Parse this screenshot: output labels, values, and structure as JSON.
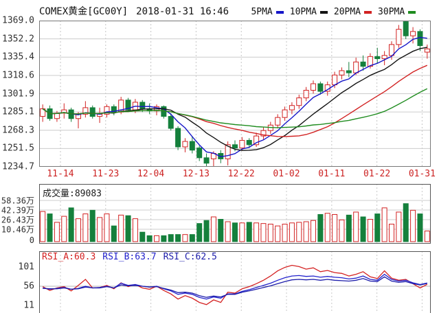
{
  "header": {
    "title": "COMEX黄金[GC00Y]",
    "datetime": "2018-01-31 16:46",
    "legend": [
      {
        "label": "5PMA",
        "color": "#1616c8"
      },
      {
        "label": "10PMA",
        "color": "#141414"
      },
      {
        "label": "20PMA",
        "color": "#d22222"
      },
      {
        "label": "30PMA",
        "color": "#1f8c1f"
      }
    ]
  },
  "chart_data": [
    {
      "type": "candlestick",
      "title": "COMEX黄金[GC00Y]",
      "ylim": [
        1234.7,
        1369.0
      ],
      "y_ticks": [
        "1369.0",
        "1352.2",
        "1335.4",
        "1318.6",
        "1301.9",
        "1285.1",
        "1268.3",
        "1251.5",
        "1234.7"
      ],
      "x_ticks": [
        "11-14",
        "11-23",
        "12-04",
        "12-13",
        "12-22",
        "01-02",
        "01-11",
        "01-22",
        "01-31"
      ],
      "x_tick_color": "#cc2222",
      "up_color": "#d22222",
      "down_color": "#15803c",
      "grid": true,
      "candles_ohlc": [
        [
          1281,
          1292,
          1276,
          1288
        ],
        [
          1288,
          1291,
          1277,
          1279
        ],
        [
          1279,
          1286,
          1276,
          1284
        ],
        [
          1284,
          1293,
          1279,
          1287
        ],
        [
          1287,
          1289,
          1276,
          1279
        ],
        [
          1279,
          1285,
          1270,
          1283
        ],
        [
          1283,
          1295,
          1280,
          1289
        ],
        [
          1289,
          1291,
          1279,
          1281
        ],
        [
          1281,
          1289,
          1275,
          1283
        ],
        [
          1283,
          1292,
          1280,
          1290
        ],
        [
          1290,
          1292,
          1282,
          1285
        ],
        [
          1285,
          1299,
          1283,
          1296
        ],
        [
          1296,
          1298,
          1285,
          1287
        ],
        [
          1287,
          1297,
          1284,
          1294
        ],
        [
          1294,
          1296,
          1285,
          1288
        ],
        [
          1288,
          1293,
          1283,
          1286
        ],
        [
          1286,
          1292,
          1282,
          1290
        ],
        [
          1290,
          1291,
          1279,
          1281
        ],
        [
          1281,
          1284,
          1268,
          1270
        ],
        [
          1270,
          1272,
          1250,
          1253
        ],
        [
          1253,
          1261,
          1248,
          1258
        ],
        [
          1258,
          1263,
          1247,
          1250
        ],
        [
          1252,
          1254,
          1240,
          1243
        ],
        [
          1243,
          1247,
          1235,
          1238
        ],
        [
          1242,
          1249,
          1234,
          1247
        ],
        [
          1247,
          1250,
          1238,
          1242
        ],
        [
          1242,
          1258,
          1236,
          1255
        ],
        [
          1255,
          1259,
          1249,
          1252
        ],
        [
          1252,
          1262,
          1250,
          1259
        ],
        [
          1259,
          1261,
          1252,
          1255
        ],
        [
          1255,
          1266,
          1253,
          1263
        ],
        [
          1263,
          1271,
          1260,
          1268
        ],
        [
          1268,
          1276,
          1265,
          1273
        ],
        [
          1273,
          1283,
          1270,
          1280
        ],
        [
          1280,
          1290,
          1277,
          1287
        ],
        [
          1287,
          1294,
          1283,
          1291
        ],
        [
          1291,
          1301,
          1288,
          1298
        ],
        [
          1298,
          1308,
          1295,
          1305
        ],
        [
          1305,
          1314,
          1302,
          1311
        ],
        [
          1311,
          1313,
          1301,
          1304
        ],
        [
          1304,
          1313,
          1300,
          1310
        ],
        [
          1310,
          1322,
          1307,
          1319
        ],
        [
          1319,
          1326,
          1315,
          1323
        ],
        [
          1323,
          1331,
          1317,
          1321
        ],
        [
          1321,
          1335,
          1319,
          1331
        ],
        [
          1331,
          1337,
          1323,
          1327
        ],
        [
          1327,
          1339,
          1325,
          1336
        ],
        [
          1336,
          1344,
          1330,
          1334
        ],
        [
          1334,
          1341,
          1328,
          1337
        ],
        [
          1337,
          1350,
          1333,
          1347
        ],
        [
          1347,
          1365,
          1344,
          1361
        ],
        [
          1368,
          1370,
          1352,
          1355
        ],
        [
          1355,
          1363,
          1348,
          1359
        ],
        [
          1359,
          1361,
          1341,
          1346
        ],
        [
          1340,
          1347,
          1334,
          1343
        ]
      ],
      "ma": [
        {
          "name": "5PMA",
          "period": 5,
          "color": "#1616c8"
        },
        {
          "name": "10PMA",
          "period": 10,
          "color": "#141414"
        },
        {
          "name": "20PMA",
          "period": 20,
          "color": "#d22222"
        },
        {
          "name": "30PMA",
          "period": 30,
          "color": "#1f8c1f"
        }
      ]
    },
    {
      "type": "bar",
      "title": "成交量",
      "value": "89083",
      "unit": "万",
      "y_ticks": [
        "58.36万",
        "42.39万",
        "26.43万",
        "10.46万",
        "0"
      ],
      "values": [
        40,
        36,
        22,
        32,
        46,
        28,
        36,
        42,
        30,
        36,
        16,
        34,
        33,
        28,
        8,
        5,
        5,
        5,
        6,
        6,
        6,
        6,
        20,
        25,
        31,
        27,
        23,
        21,
        21,
        22,
        21,
        20,
        19,
        16,
        19,
        21,
        22,
        23,
        25,
        35,
        37,
        35,
        26,
        34,
        39,
        31,
        27,
        36,
        46,
        19,
        39,
        53,
        42,
        36,
        9
      ]
    },
    {
      "type": "line",
      "title": "RSI",
      "y_ticks": [
        "101",
        "56",
        "11"
      ],
      "series": [
        {
          "name": "RSI_A",
          "value": "60.3",
          "color": "#d42222",
          "points": [
            55,
            46,
            52,
            55,
            45,
            58,
            72,
            52,
            53,
            58,
            50,
            64,
            55,
            60,
            52,
            49,
            56,
            46,
            38,
            26,
            34,
            28,
            18,
            13,
            24,
            18,
            42,
            40,
            50,
            55,
            62,
            70,
            80,
            92,
            100,
            105,
            102,
            96,
            99,
            90,
            93,
            88,
            86,
            80,
            84,
            90,
            78,
            74,
            92,
            75,
            70,
            72,
            62,
            52,
            60.3
          ]
        },
        {
          "name": "RSI_B",
          "value": "63.7",
          "color": "#2222cc",
          "points": [
            52,
            49,
            51,
            53,
            49,
            51,
            56,
            52,
            53,
            56,
            52,
            63,
            58,
            60,
            56,
            54,
            56,
            50,
            45,
            37,
            40,
            37,
            30,
            26,
            31,
            28,
            38,
            38,
            44,
            48,
            53,
            58,
            63,
            70,
            76,
            80,
            81,
            79,
            80,
            77,
            79,
            77,
            76,
            73,
            75,
            80,
            72,
            70,
            84,
            72,
            68,
            70,
            64,
            60,
            63.7
          ]
        },
        {
          "name": "RSI_C",
          "value": "62.5",
          "color": "#1c1caa",
          "points": [
            51,
            50,
            50,
            52,
            49,
            50,
            54,
            52,
            52,
            55,
            52,
            59,
            57,
            58,
            56,
            54,
            55,
            51,
            47,
            41,
            42,
            40,
            34,
            30,
            33,
            31,
            37,
            37,
            42,
            45,
            49,
            53,
            57,
            62,
            67,
            71,
            72,
            71,
            72,
            70,
            72,
            70,
            69,
            68,
            70,
            74,
            68,
            67,
            78,
            68,
            65,
            67,
            62,
            59,
            62.5
          ]
        }
      ]
    }
  ]
}
